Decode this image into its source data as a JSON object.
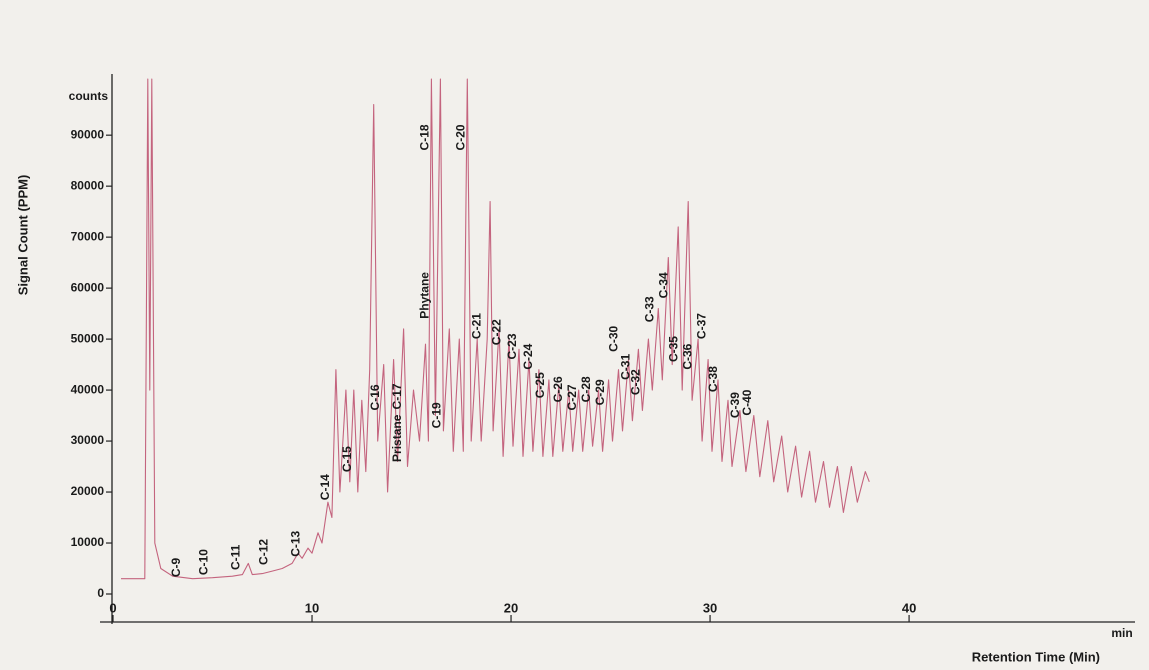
{
  "chart_data": {
    "type": "line",
    "y_axis_label": "Signal Count (PPM)",
    "x_axis_label": "Retention Time (Min)",
    "y_unit_label": "counts",
    "x_unit_label": "min",
    "color": "#c4647e",
    "xlim": [
      0,
      51
    ],
    "ylim": [
      0,
      102000
    ],
    "xticks": [
      0,
      10,
      20,
      30,
      40
    ],
    "yticks": [
      0,
      10000,
      20000,
      30000,
      40000,
      50000,
      60000,
      70000,
      80000,
      90000
    ],
    "x": [
      0.4,
      1.6,
      1.75,
      1.85,
      1.95,
      2.1,
      2.4,
      3,
      4,
      5,
      6,
      6.5,
      6.8,
      7,
      7.5,
      8,
      8.5,
      9,
      9.3,
      9.5,
      9.8,
      10,
      10.3,
      10.5,
      10.8,
      11,
      11.2,
      11.4,
      11.7,
      11.9,
      12.1,
      12.3,
      12.5,
      12.7,
      12.9,
      13.1,
      13.3,
      13.6,
      13.8,
      14.1,
      14.3,
      14.6,
      14.8,
      15.1,
      15.4,
      15.7,
      15.85,
      16,
      16.2,
      16.45,
      16.6,
      16.9,
      17.1,
      17.4,
      17.6,
      17.8,
      18,
      18.3,
      18.5,
      18.8,
      18.95,
      19.1,
      19.4,
      19.6,
      19.9,
      20.1,
      20.4,
      20.6,
      20.9,
      21.1,
      21.4,
      21.6,
      21.9,
      22.1,
      22.4,
      22.6,
      22.9,
      23.1,
      23.4,
      23.6,
      23.9,
      24.1,
      24.4,
      24.6,
      24.9,
      25.1,
      25.4,
      25.6,
      25.9,
      26.1,
      26.4,
      26.6,
      26.9,
      27.1,
      27.4,
      27.6,
      27.9,
      28.1,
      28.4,
      28.6,
      28.9,
      29.1,
      29.4,
      29.6,
      29.9,
      30.1,
      30.4,
      30.6,
      30.9,
      31.1,
      31.5,
      31.8,
      32.2,
      32.5,
      32.9,
      33.2,
      33.6,
      33.9,
      34.3,
      34.6,
      35,
      35.3,
      35.7,
      36,
      36.4,
      36.7,
      37.1,
      37.4,
      37.8,
      38
    ],
    "values": [
      3000,
      3000,
      101000,
      40000,
      101000,
      10000,
      5000,
      3500,
      3000,
      3200,
      3500,
      3800,
      6000,
      3800,
      4000,
      4500,
      5000,
      6000,
      8000,
      7000,
      9000,
      8000,
      12000,
      10000,
      18000,
      15000,
      44000,
      20000,
      40000,
      22000,
      40000,
      20000,
      38000,
      24000,
      44000,
      96000,
      30000,
      45000,
      20000,
      46000,
      26000,
      52000,
      25000,
      40000,
      30000,
      49000,
      30000,
      101000,
      35000,
      101000,
      32000,
      52000,
      28000,
      50000,
      28000,
      101000,
      30000,
      50000,
      30000,
      50000,
      77000,
      32000,
      52000,
      27000,
      50000,
      29000,
      48000,
      27000,
      46000,
      28000,
      44000,
      27000,
      42000,
      27000,
      41000,
      28000,
      40000,
      28000,
      40000,
      28000,
      40000,
      29000,
      40000,
      28000,
      42000,
      30000,
      44000,
      32000,
      46000,
      34000,
      48000,
      36000,
      50000,
      40000,
      56000,
      42000,
      66000,
      45000,
      72000,
      40000,
      77000,
      38000,
      50000,
      30000,
      46000,
      28000,
      42000,
      26000,
      38000,
      25000,
      36000,
      24000,
      35000,
      23000,
      34000,
      22000,
      31000,
      20000,
      29000,
      19000,
      28000,
      18000,
      26000,
      17000,
      25000,
      16000,
      25000,
      18000,
      24000,
      22000
    ],
    "annotations": [
      {
        "text": "C-9",
        "x": 3.2,
        "y": 3300
      },
      {
        "text": "C-10",
        "x": 4.6,
        "y": 3700
      },
      {
        "text": "C-11",
        "x": 6.2,
        "y": 4700
      },
      {
        "text": "C-12",
        "x": 7.6,
        "y": 5700
      },
      {
        "text": "C-13",
        "x": 9.2,
        "y": 7300
      },
      {
        "text": "C-14",
        "x": 10.7,
        "y": 18400
      },
      {
        "text": "C-15",
        "x": 11.8,
        "y": 23900
      },
      {
        "text": "C-16",
        "x": 13.2,
        "y": 36000
      },
      {
        "text": "Pristane",
        "x": 14.3,
        "y": 25900
      },
      {
        "text": "C-17",
        "x": 14.3,
        "y": 36200
      },
      {
        "text": "Phytane",
        "x": 15.7,
        "y": 54000
      },
      {
        "text": "C-18",
        "x": 15.7,
        "y": 87000
      },
      {
        "text": "C-19",
        "x": 16.3,
        "y": 32500
      },
      {
        "text": "C-20",
        "x": 17.5,
        "y": 87000
      },
      {
        "text": "C-21",
        "x": 18.3,
        "y": 50000
      },
      {
        "text": "C-22",
        "x": 19.3,
        "y": 48800
      },
      {
        "text": "C-23",
        "x": 20.1,
        "y": 46000
      },
      {
        "text": "C-24",
        "x": 20.9,
        "y": 44000
      },
      {
        "text": "C-25",
        "x": 21.5,
        "y": 38400
      },
      {
        "text": "C-26",
        "x": 22.4,
        "y": 37600
      },
      {
        "text": "C-27",
        "x": 23.1,
        "y": 36000
      },
      {
        "text": "C-28",
        "x": 23.8,
        "y": 37600
      },
      {
        "text": "C-29",
        "x": 24.5,
        "y": 37000
      },
      {
        "text": "C-30",
        "x": 25.2,
        "y": 47500
      },
      {
        "text": "C-31",
        "x": 25.8,
        "y": 42000
      },
      {
        "text": "C-32",
        "x": 26.3,
        "y": 39000
      },
      {
        "text": "C-33",
        "x": 27.0,
        "y": 53300
      },
      {
        "text": "C-34",
        "x": 27.7,
        "y": 58000
      },
      {
        "text": "C-35",
        "x": 28.2,
        "y": 45500
      },
      {
        "text": "C-36",
        "x": 28.9,
        "y": 44000
      },
      {
        "text": "C-37",
        "x": 29.6,
        "y": 50000
      },
      {
        "text": "C-38",
        "x": 30.2,
        "y": 39600
      },
      {
        "text": "C-39",
        "x": 31.3,
        "y": 34500
      },
      {
        "text": "C-40",
        "x": 31.9,
        "y": 35000
      }
    ]
  }
}
